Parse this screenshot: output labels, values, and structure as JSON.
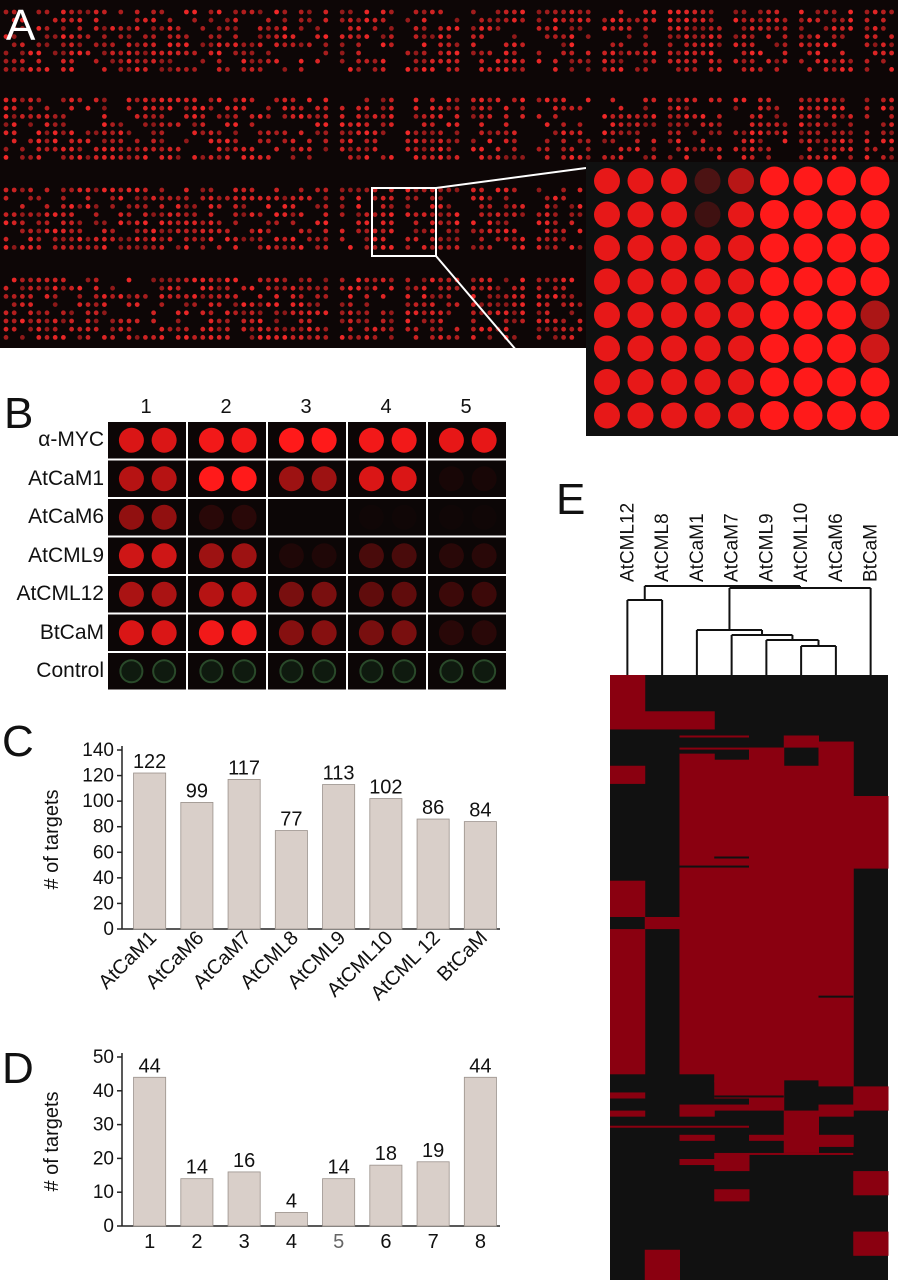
{
  "figure": {
    "panels": {
      "A": {
        "letter": "A"
      },
      "B": {
        "letter": "B",
        "columns": [
          "1",
          "2",
          "3",
          "4",
          "5"
        ],
        "rows": [
          "α-MYC",
          "AtCaM1",
          "AtCaM6",
          "AtCML9",
          "AtCML12",
          "BtCaM",
          "Control"
        ],
        "intensity": [
          [
            0.85,
            0.95,
            1.0,
            0.95,
            0.9
          ],
          [
            0.7,
            1.0,
            0.6,
            0.85,
            0.05
          ],
          [
            0.55,
            0.12,
            0.0,
            0.02,
            0.02
          ],
          [
            0.8,
            0.6,
            0.08,
            0.25,
            0.12
          ],
          [
            0.65,
            0.7,
            0.45,
            0.35,
            0.2
          ],
          [
            0.85,
            0.95,
            0.5,
            0.45,
            0.12
          ],
          [
            0.0,
            0.0,
            0.0,
            0.0,
            0.0
          ]
        ]
      },
      "C": {
        "letter": "C"
      },
      "D": {
        "letter": "D"
      },
      "E": {
        "letter": "E",
        "columns": [
          "AtCML12",
          "AtCML8",
          "AtCaM1",
          "AtCaM7",
          "AtCML9",
          "AtCML10",
          "AtCaM6",
          "BtCaM"
        ]
      }
    },
    "colors": {
      "spot": "#ff1a1a",
      "heat_on": "#8a0010",
      "heat_off": "#111111",
      "bar": "#d9cfc9",
      "control_ring": "#2a4a2a"
    }
  },
  "chart_data": [
    {
      "type": "bar",
      "panel": "C",
      "categories": [
        "AtCaM1",
        "AtCaM6",
        "AtCaM7",
        "AtCML8",
        "AtCML9",
        "AtCML10",
        "AtCML 12",
        "BtCaM"
      ],
      "values": [
        122,
        99,
        117,
        77,
        113,
        102,
        86,
        84
      ],
      "value_labels": [
        "122",
        "99",
        "117",
        "77",
        "113",
        "102",
        "86",
        "84"
      ],
      "ylabel": "# of targets",
      "ylim": [
        0,
        140
      ],
      "yticks": [
        "0",
        "20",
        "40",
        "60",
        "80",
        "100",
        "120",
        "140"
      ],
      "grid": false
    },
    {
      "type": "bar",
      "panel": "D",
      "categories": [
        "1",
        "2",
        "3",
        "4",
        "5",
        "6",
        "7",
        "8"
      ],
      "values": [
        44,
        14,
        16,
        4,
        14,
        18,
        19,
        44
      ],
      "value_labels": [
        "44",
        "14",
        "16",
        "4",
        "14",
        "18",
        "19",
        "44"
      ],
      "ylabel": "# of targets",
      "ylim": [
        0,
        50
      ],
      "yticks": [
        "0",
        "10",
        "20",
        "30",
        "40",
        "50"
      ],
      "grid": false
    }
  ]
}
